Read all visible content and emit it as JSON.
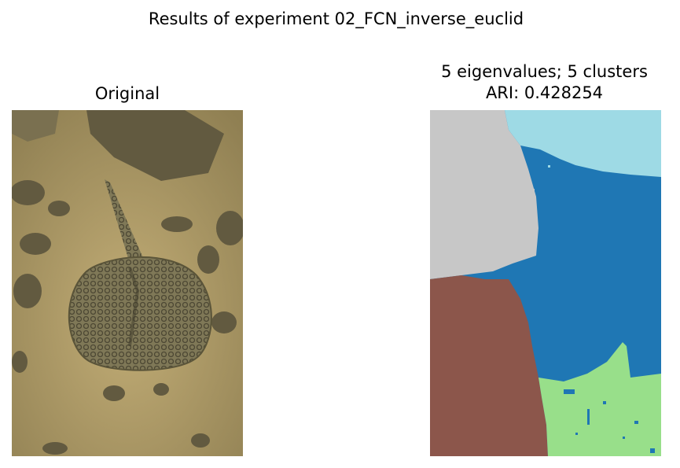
{
  "figure": {
    "suptitle": "Results of experiment 02_FCN_inverse_euclid"
  },
  "panels": [
    {
      "title": "Original"
    },
    {
      "title_line1": "5 eigenvalues; 5 clusters",
      "title_line2": "ARI: 0.428254"
    }
  ],
  "colors": {
    "sand": "#b3a06a",
    "rock": "#6e6548",
    "ray": "#7d7655",
    "ray_dark": "#4a4632",
    "cluster_gray": "#c7c7c7",
    "cluster_light_blue": "#9edae5",
    "cluster_blue": "#1f77b4",
    "cluster_brown": "#8c564b",
    "cluster_green": "#98df8a"
  }
}
